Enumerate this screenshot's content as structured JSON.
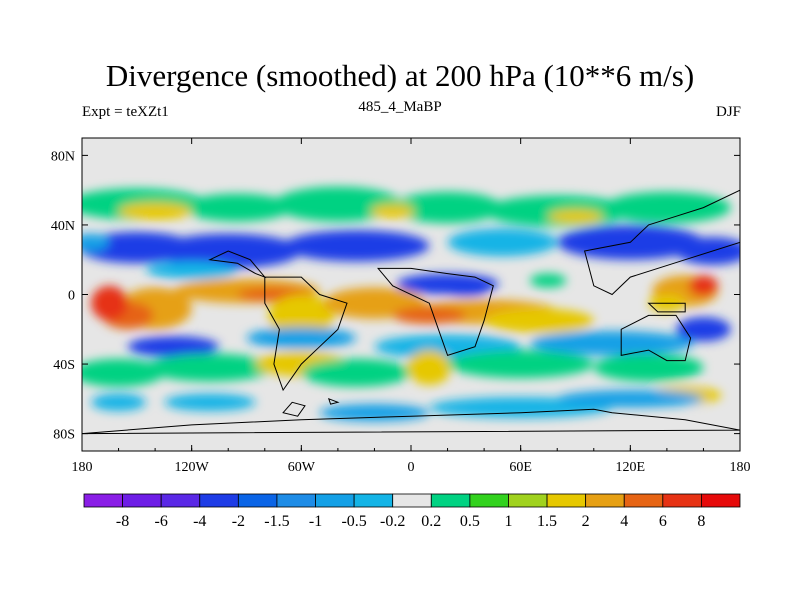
{
  "chart_data": {
    "type": "heatmap",
    "title": "Divergence (smoothed) at 200 hPa (10**6 m/s)",
    "left_label": "Expt = teXZt1",
    "center_label": "485_4_MaBP",
    "right_label": "DJF",
    "xlim": [
      -180,
      180
    ],
    "ylim": [
      -90,
      90
    ],
    "x_ticks": [
      {
        "value": -180,
        "label": "180"
      },
      {
        "value": -120,
        "label": "120W"
      },
      {
        "value": -60,
        "label": "60W"
      },
      {
        "value": 0,
        "label": "0"
      },
      {
        "value": 60,
        "label": "60E"
      },
      {
        "value": 120,
        "label": "120E"
      },
      {
        "value": 180,
        "label": "180"
      }
    ],
    "y_ticks": [
      {
        "value": 80,
        "label": "80N"
      },
      {
        "value": 40,
        "label": "40N"
      },
      {
        "value": 0,
        "label": "0"
      },
      {
        "value": -40,
        "label": "40S"
      },
      {
        "value": -80,
        "label": "80S"
      }
    ],
    "colorbar": {
      "colors": [
        "#8a1ee6",
        "#6e1ee6",
        "#5a28e6",
        "#1e3ce6",
        "#0a64e6",
        "#1e8ce6",
        "#14a0e6",
        "#14b4e6",
        "#e6e6e6",
        "#00d282",
        "#32d21e",
        "#a0d21e",
        "#e6c800",
        "#e6a014",
        "#e66414",
        "#e63214",
        "#e60a0a"
      ],
      "labels": [
        "-8",
        "-6",
        "-4",
        "-2",
        "-1.5",
        "-1",
        "-0.5",
        "-0.2",
        "0.2",
        "0.5",
        "1",
        "1.5",
        "2",
        "4",
        "6",
        "8"
      ]
    },
    "colors": {
      "blue": "#1e3ce6",
      "light_blue": "#14a0e6",
      "cyan": "#14b4e6",
      "green": "#00d282",
      "yellow": "#e6c800",
      "orange": "#e6a014",
      "dark_orange": "#e66414",
      "red": "#e63214",
      "background": "#e6e6e6"
    },
    "fields": [
      {
        "name": "north-green-band",
        "color": "green",
        "lon": [
          -180,
          180
        ],
        "lat": [
          45,
          60
        ]
      },
      {
        "name": "north-blue-band",
        "color": "blue",
        "lon": [
          -175,
          180
        ],
        "lat": [
          20,
          35
        ]
      },
      {
        "name": "equatorial-orange-band",
        "color": "orange",
        "lon": [
          -170,
          110
        ],
        "lat": [
          -25,
          10
        ]
      },
      {
        "name": "south-green-band",
        "color": "green",
        "lon": [
          -180,
          180
        ],
        "lat": [
          -50,
          -30
        ]
      },
      {
        "name": "south-cyan-band",
        "color": "cyan",
        "lon": [
          -80,
          160
        ],
        "lat": [
          -75,
          -55
        ]
      }
    ]
  }
}
